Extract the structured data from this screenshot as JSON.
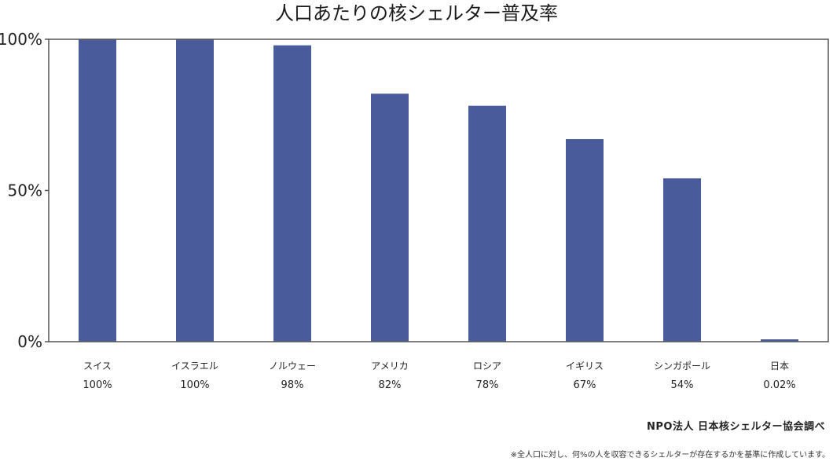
{
  "chart_data": {
    "type": "bar",
    "title": "人口あたりの核シェルター普及率",
    "categories": [
      "スイス",
      "イスラエル",
      "ノルウェー",
      "アメリカ",
      "ロシア",
      "イギリス",
      "シンガポール",
      "日本"
    ],
    "values": [
      100,
      100,
      98,
      82,
      78,
      67,
      54,
      0.02
    ],
    "value_labels": [
      "100%",
      "100%",
      "98%",
      "82%",
      "78%",
      "67%",
      "54%",
      "0.02%"
    ],
    "ytick_values": [
      0,
      50,
      100
    ],
    "ytick_labels": [
      "0%",
      "50%",
      "100%"
    ],
    "ylim": [
      0,
      100
    ],
    "xlabel": "",
    "ylabel": "",
    "grid": false,
    "legend": "none",
    "bar_color": "#4a5b9c",
    "axis_color": "#555555"
  },
  "notes": {
    "source": "NPO法人 日本核シェルター協会調べ",
    "footnote": "※全人口に対し、何%の人を収容できるシェルターが存在するかを基準に作成しています。"
  }
}
